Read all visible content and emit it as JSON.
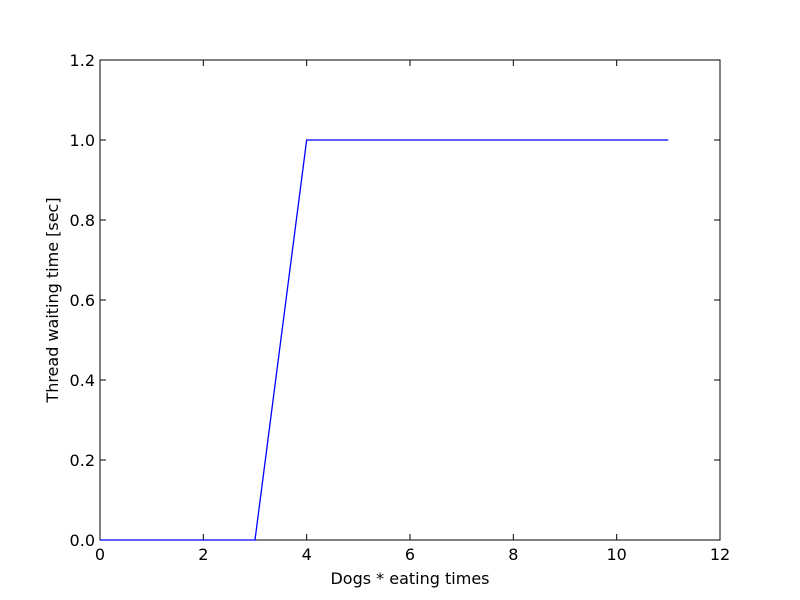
{
  "chart_data": {
    "type": "line",
    "title": "",
    "xlabel": "Dogs * eating times",
    "ylabel": "Thread waiting time [sec]",
    "xlim": [
      0,
      12
    ],
    "ylim": [
      0,
      1.2
    ],
    "x_ticks": [
      0,
      2,
      4,
      6,
      8,
      10,
      12
    ],
    "y_ticks": [
      0.0,
      0.2,
      0.4,
      0.6,
      0.8,
      1.0,
      1.2
    ],
    "x_tick_labels": [
      "0",
      "2",
      "4",
      "6",
      "8",
      "10",
      "12"
    ],
    "y_tick_labels": [
      "0.0",
      "0.2",
      "0.4",
      "0.6",
      "0.8",
      "1.0",
      "1.2"
    ],
    "grid": false,
    "legend": "none",
    "series": [
      {
        "color": "#0000ff",
        "x": [
          0,
          1,
          2,
          3,
          4,
          5,
          6,
          7,
          8,
          9,
          10,
          11
        ],
        "y": [
          0,
          0,
          0,
          0,
          1.0,
          1.0,
          1.0,
          1.0,
          1.0,
          1.0,
          1.0,
          1.0
        ]
      }
    ]
  }
}
